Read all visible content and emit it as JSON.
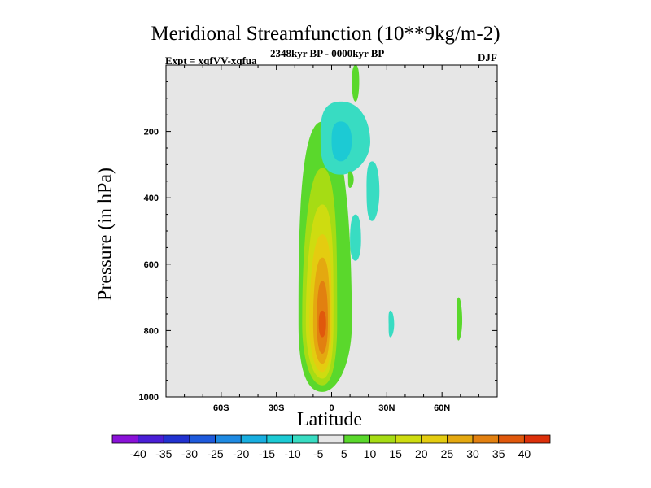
{
  "chart_data": {
    "type": "heatmap",
    "title": "Meridional Streamfunction (10**9kg/m-2)",
    "left_string": "Expt = xqfVV-xqfua",
    "center_string": "2348kyr BP - 0000kyr BP",
    "right_string": "DJF",
    "xlabel": "Latitude",
    "ylabel": "Pressure (in hPa)",
    "xlim": [
      -90,
      90
    ],
    "ylim": [
      1000,
      0
    ],
    "x_ticks": [
      {
        "value": -60,
        "label": "60S"
      },
      {
        "value": -30,
        "label": "30S"
      },
      {
        "value": 0,
        "label": "0"
      },
      {
        "value": 30,
        "label": "30N"
      },
      {
        "value": 60,
        "label": "60N"
      }
    ],
    "y_ticks": [
      {
        "value": 200,
        "label": "200"
      },
      {
        "value": 400,
        "label": "400"
      },
      {
        "value": 600,
        "label": "600"
      },
      {
        "value": 800,
        "label": "800"
      },
      {
        "value": 1000,
        "label": "1000"
      }
    ],
    "background_color": "#e6e6e6",
    "levels": [
      -40,
      -35,
      -30,
      -25,
      -20,
      -15,
      -10,
      -5,
      5,
      10,
      15,
      20,
      25,
      30,
      35,
      40
    ],
    "colors": [
      "#8a12d8",
      "#4a1ed6",
      "#2232d0",
      "#1e5adc",
      "#1e8ae2",
      "#18aee0",
      "#1ccad4",
      "#38dcc2",
      "#e6e6e6",
      "#5ad82c",
      "#a6dc14",
      "#cedc10",
      "#e4cc10",
      "#e4a810",
      "#e28010",
      "#e0580c",
      "#dc300a"
    ],
    "features": [
      {
        "name": "positive-cell-outer",
        "value": 7,
        "lat": [
          -18,
          11
        ],
        "p": [
          170,
          985
        ],
        "peak_lat": -5,
        "peak_p": 780
      },
      {
        "name": "positive-cell-l2",
        "value": 12,
        "lat": [
          -16,
          3
        ],
        "p": [
          310,
          965
        ],
        "peak_lat": -5,
        "peak_p": 780
      },
      {
        "name": "positive-cell-l3",
        "value": 17,
        "lat": [
          -14,
          1
        ],
        "p": [
          420,
          945
        ],
        "peak_lat": -5,
        "peak_p": 780
      },
      {
        "name": "positive-cell-l4",
        "value": 22,
        "lat": [
          -12,
          0
        ],
        "p": [
          510,
          925
        ],
        "peak_lat": -5,
        "peak_p": 780
      },
      {
        "name": "positive-cell-l5",
        "value": 27,
        "lat": [
          -10,
          -1
        ],
        "p": [
          580,
          900
        ],
        "peak_lat": -5,
        "peak_p": 780
      },
      {
        "name": "positive-cell-l6",
        "value": 32,
        "lat": [
          -8,
          -2
        ],
        "p": [
          650,
          870
        ],
        "peak_lat": -5,
        "peak_p": 780
      },
      {
        "name": "positive-cell-core",
        "value": 37,
        "lat": [
          -7,
          -3
        ],
        "p": [
          740,
          820
        ],
        "peak_lat": -5,
        "peak_p": 780
      },
      {
        "name": "upper-positive-strip",
        "value": 7,
        "lat": [
          11,
          15
        ],
        "p": [
          0,
          110
        ],
        "peak_lat": 13,
        "peak_p": 50
      },
      {
        "name": "negative-cell-outer",
        "value": -7,
        "lat": [
          -6,
          21
        ],
        "p": [
          110,
          330
        ],
        "peak_lat": 5,
        "peak_p": 230
      },
      {
        "name": "negative-cell-inner",
        "value": -12,
        "lat": [
          0,
          11
        ],
        "p": [
          170,
          290
        ],
        "peak_lat": 5,
        "peak_p": 230
      },
      {
        "name": "negative-streak-east",
        "value": -7,
        "lat": [
          19,
          26
        ],
        "p": [
          290,
          470
        ],
        "peak_lat": 22,
        "peak_p": 380
      },
      {
        "name": "negative-streak-mid",
        "value": -7,
        "lat": [
          10,
          16
        ],
        "p": [
          450,
          590
        ],
        "peak_lat": 13,
        "peak_p": 530
      },
      {
        "name": "positive-blip-north",
        "value": 7,
        "lat": [
          68,
          71
        ],
        "p": [
          700,
          830
        ],
        "peak_lat": 69,
        "peak_p": 770
      },
      {
        "name": "negative-blip-30n",
        "value": -7,
        "lat": [
          31,
          34
        ],
        "p": [
          740,
          820
        ],
        "peak_lat": 32,
        "peak_p": 780
      },
      {
        "name": "positive-blip-small",
        "value": 7,
        "lat": [
          9,
          12
        ],
        "p": [
          320,
          370
        ],
        "peak_lat": 10,
        "peak_p": 345
      }
    ],
    "colorbar_labels": [
      "-40",
      "-35",
      "-30",
      "-25",
      "-20",
      "-15",
      "-10",
      "-5",
      "5",
      "10",
      "15",
      "20",
      "25",
      "30",
      "35",
      "40"
    ]
  }
}
